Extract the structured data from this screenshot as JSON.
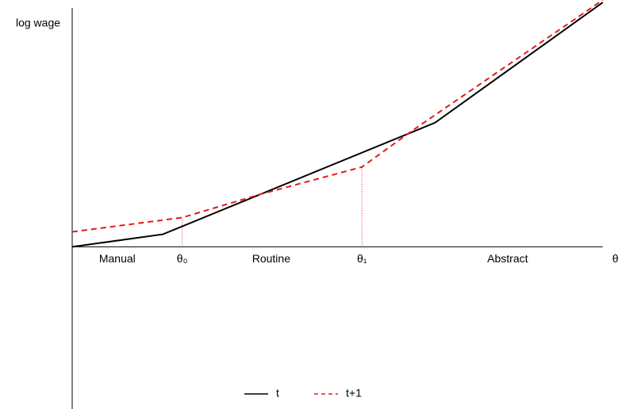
{
  "chart_data": {
    "type": "line",
    "y_label": "log wage",
    "xlim": [
      0,
      100
    ],
    "ylim": [
      -67,
      102
    ],
    "series": [
      {
        "name": "t",
        "color": "#000000",
        "dash": "solid",
        "x": [
          0,
          16.5,
          66,
          96.5
        ],
        "values": [
          0,
          5.2,
          51.3,
          101
        ]
      },
      {
        "name": "t+1",
        "color": "#e41a1c",
        "dash": "dashed",
        "x": [
          0,
          20,
          34.5,
          52.7,
          61.9,
          96.5
        ],
        "values": [
          6.2,
          12.1,
          21.9,
          33,
          48.1,
          102
        ]
      }
    ],
    "x_annotations": [
      {
        "text": "Manual",
        "x": 8.2,
        "guide": false
      },
      {
        "text": "θ₀",
        "x": 20,
        "guide": true
      },
      {
        "text": "Routine",
        "x": 36.2,
        "guide": false
      },
      {
        "text": "θ₁",
        "x": 52.7,
        "guide": true
      },
      {
        "text": "Abstract",
        "x": 79.2,
        "guide": false
      },
      {
        "text": "θ",
        "x": 98.8,
        "guide": false
      }
    ],
    "guide_color": "#e41a1c",
    "legend": "bottom"
  }
}
